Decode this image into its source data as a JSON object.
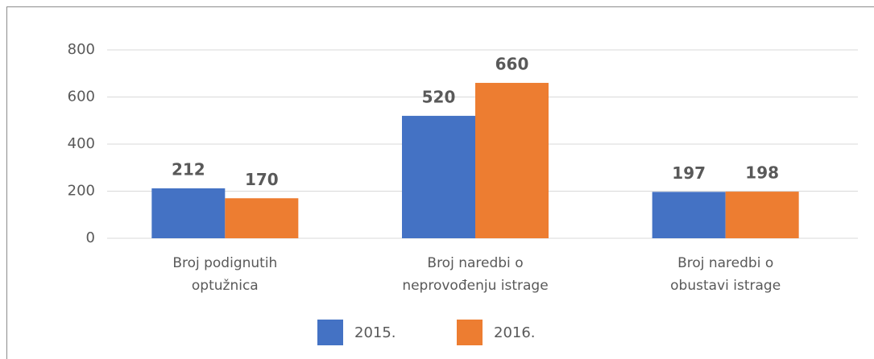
{
  "chart_data": {
    "type": "bar",
    "categories": [
      "Broj podignutih optužnica",
      "Broj naredbi o neprovođenju istrage",
      "Broj naredbi o obustavi istrage"
    ],
    "series": [
      {
        "name": "2015.",
        "color": "#4472c4",
        "values": [
          212,
          520,
          197
        ]
      },
      {
        "name": "2016.",
        "color": "#ed7d31",
        "values": [
          170,
          660,
          198
        ]
      }
    ],
    "ylim": [
      0,
      800
    ],
    "yticks": [
      0,
      200,
      400,
      600,
      800
    ],
    "grid": true,
    "legend": "bottom"
  }
}
